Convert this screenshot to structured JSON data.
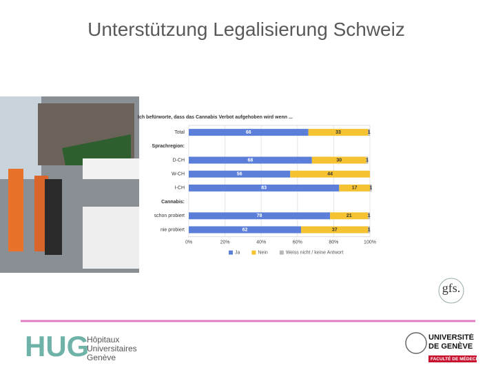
{
  "slide": {
    "title": "Unterstützung Legalisierung Schweiz"
  },
  "logos": {
    "gfs": "gfs.",
    "hug": "HUG",
    "hug_name": "Hôpitaux Universitaires Genève",
    "unige": "UNIVERSITÉ DE GENÈVE",
    "faculty": "FACULTÉ DE MÉDECINE"
  },
  "chart_data": {
    "type": "bar",
    "orientation": "horizontal",
    "stacked": true,
    "title": "Ich befürworte, dass das Cannabis Verbot aufgehoben wird wenn ...",
    "categories": [
      "Total",
      "Sprachregion:",
      "D-CH",
      "W-CH",
      "I-CH",
      "Cannabis:",
      "schon probiert",
      "nie probiert"
    ],
    "series": [
      {
        "name": "Ja",
        "color": "#5b7fd9",
        "values": [
          66,
          null,
          68,
          56,
          83,
          null,
          78,
          62
        ]
      },
      {
        "name": "Nein",
        "color": "#f5c232",
        "values": [
          33,
          null,
          30,
          44,
          17,
          null,
          21,
          37
        ]
      },
      {
        "name": "Weiss nicht / keine Antwort",
        "color": "#b8b8b8",
        "values": [
          1,
          null,
          1,
          null,
          1,
          null,
          1,
          1
        ]
      }
    ],
    "xlim": [
      0,
      100
    ],
    "xticks": [
      {
        "value": 0,
        "label": "0%"
      },
      {
        "value": 20,
        "label": "20%"
      },
      {
        "value": 40,
        "label": "40%"
      },
      {
        "value": 60,
        "label": "60%"
      },
      {
        "value": 80,
        "label": "80%"
      },
      {
        "value": 100,
        "label": "100%"
      }
    ],
    "grid": true,
    "legend": "bottom"
  }
}
